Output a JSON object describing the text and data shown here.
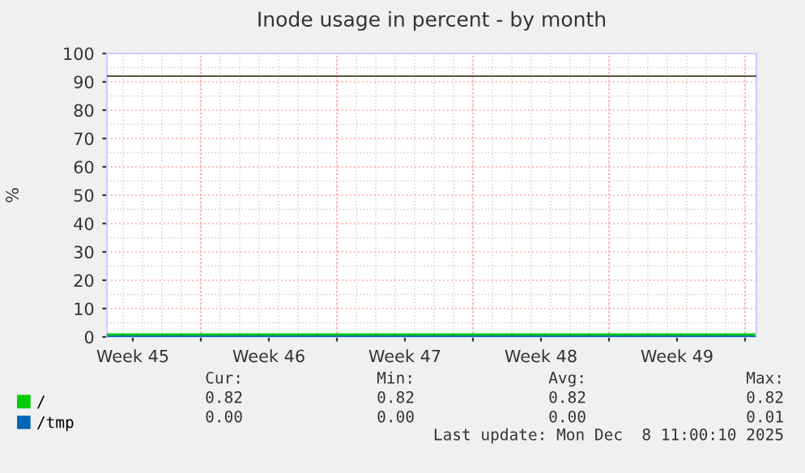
{
  "chart_data": {
    "type": "line",
    "title": "Inode usage in percent - by month",
    "ylabel": "%",
    "xlim": [
      "2025-11-05T04:00",
      "2025-12-08T14:00"
    ],
    "xticks": [
      {
        "value": "2025-11-06T12:00",
        "label": "Week 45"
      },
      {
        "value": "2025-11-10T00:00",
        "label": null
      },
      {
        "value": "2025-11-13T12:00",
        "label": "Week 46"
      },
      {
        "value": "2025-11-17T00:00",
        "label": null
      },
      {
        "value": "2025-11-20T12:00",
        "label": "Week 47"
      },
      {
        "value": "2025-11-24T00:00",
        "label": null
      },
      {
        "value": "2025-11-27T12:00",
        "label": "Week 48"
      },
      {
        "value": "2025-12-01T00:00",
        "label": null
      },
      {
        "value": "2025-12-04T12:00",
        "label": "Week 49"
      },
      {
        "value": "2025-12-08T00:00",
        "label": null
      }
    ],
    "ylim": [
      0,
      100
    ],
    "yticks": [
      0,
      10,
      20,
      30,
      40,
      50,
      60,
      70,
      80,
      90,
      100
    ],
    "grid": true,
    "legend": "bottom left",
    "ref_lines": [
      {
        "axis": "y",
        "value": 92,
        "color": "#555544"
      }
    ],
    "series": [
      {
        "name": "/",
        "color": "#00cc00",
        "x": [
          "2025-11-05T04:00",
          "2025-12-08T11:00"
        ],
        "values": [
          0.82,
          0.82
        ]
      },
      {
        "name": "/tmp",
        "color": "#0066b3",
        "x": [
          "2025-11-05T04:00",
          "2025-12-08T11:00"
        ],
        "values": [
          0.0,
          0.0
        ]
      }
    ],
    "annotations": [
      "Cur:",
      "Min:",
      "Avg:",
      "Max:",
      "0.82",
      "0.82",
      "0.82",
      "0.82",
      "0.00",
      "0.00",
      "0.00",
      "0.01",
      "Last update: Mon Dec  8 11:00:10 2025"
    ]
  }
}
